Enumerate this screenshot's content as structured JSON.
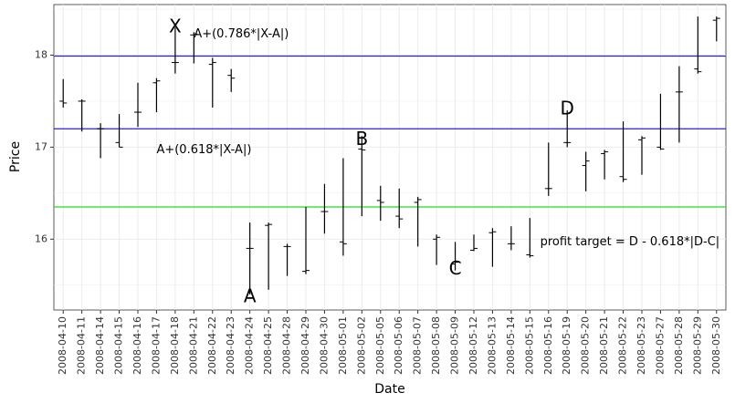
{
  "chart_data": {
    "type": "ohlc",
    "xlabel": "Date",
    "ylabel": "Price",
    "ylim": [
      15.23,
      18.55
    ],
    "yticks": [
      16,
      17,
      18
    ],
    "grid": true,
    "categories": [
      "2008-04-10",
      "2008-04-11",
      "2008-04-14",
      "2008-04-15",
      "2008-04-16",
      "2008-04-17",
      "2008-04-18",
      "2008-04-21",
      "2008-04-22",
      "2008-04-23",
      "2008-04-24",
      "2008-04-25",
      "2008-04-28",
      "2008-04-29",
      "2008-04-30",
      "2008-05-01",
      "2008-05-02",
      "2008-05-05",
      "2008-05-06",
      "2008-05-07",
      "2008-05-08",
      "2008-05-09",
      "2008-05-12",
      "2008-05-13",
      "2008-05-14",
      "2008-05-15",
      "2008-05-16",
      "2008-05-19",
      "2008-05-20",
      "2008-05-21",
      "2008-05-22",
      "2008-05-23",
      "2008-05-27",
      "2008-05-28",
      "2008-05-29",
      "2008-05-30"
    ],
    "high": [
      17.74,
      17.52,
      17.26,
      17.36,
      17.7,
      17.75,
      18.3,
      18.25,
      17.97,
      17.85,
      16.18,
      16.18,
      15.95,
      16.35,
      16.6,
      16.88,
      17.12,
      16.58,
      16.55,
      16.46,
      16.05,
      15.97,
      16.05,
      16.12,
      16.14,
      16.23,
      17.05,
      17.4,
      16.95,
      16.97,
      17.28,
      17.12,
      17.58,
      17.88,
      18.42,
      18.42
    ],
    "low": [
      17.43,
      17.17,
      16.88,
      17.0,
      17.22,
      17.38,
      17.8,
      17.91,
      17.43,
      17.6,
      15.4,
      15.45,
      15.6,
      15.62,
      16.06,
      15.82,
      16.25,
      16.2,
      16.12,
      15.92,
      15.72,
      15.66,
      15.87,
      15.7,
      15.88,
      15.8,
      16.47,
      17.0,
      16.52,
      16.65,
      16.62,
      16.7,
      16.97,
      17.05,
      17.8,
      18.15
    ],
    "open": [
      17.5,
      17.5,
      17.2,
      17.05,
      17.38,
      17.7,
      17.92,
      18.22,
      17.9,
      17.78,
      15.9,
      16.15,
      15.92,
      15.65,
      16.3,
      15.97,
      16.98,
      16.42,
      16.25,
      16.4,
      16.0,
      15.73,
      15.88,
      16.07,
      15.95,
      15.83,
      16.55,
      17.05,
      16.8,
      16.93,
      16.68,
      17.08,
      17.0,
      17.6,
      17.85,
      18.38
    ],
    "close": [
      17.48,
      17.5,
      17.2,
      17.0,
      17.38,
      17.72,
      17.92,
      18.23,
      17.92,
      17.75,
      15.9,
      16.16,
      15.92,
      15.66,
      16.3,
      15.95,
      16.97,
      16.4,
      16.22,
      16.43,
      16.02,
      15.75,
      15.9,
      16.08,
      15.95,
      15.82,
      16.55,
      17.05,
      16.85,
      16.95,
      16.65,
      17.1,
      16.98,
      17.6,
      17.82,
      18.4
    ],
    "hlines": [
      {
        "value": 17.99,
        "color": "#2424c8"
      },
      {
        "value": 17.2,
        "color": "#2424c8"
      },
      {
        "value": 16.35,
        "color": "#22dd22"
      }
    ],
    "pattern_points": [
      {
        "label": "X",
        "category": "2008-04-18",
        "y": 18.3
      },
      {
        "label": "A",
        "category": "2008-04-24",
        "y": 15.37
      },
      {
        "label": "B",
        "category": "2008-05-02",
        "y": 17.08
      },
      {
        "label": "C",
        "category": "2008-05-09",
        "y": 15.67
      },
      {
        "label": "D",
        "category": "2008-05-19",
        "y": 17.41
      }
    ],
    "annotations": [
      {
        "text": "A+(0.786*|X-A|)",
        "category": "2008-04-21",
        "y": 18.23,
        "anchor": "start",
        "offset_cat": 0.0
      },
      {
        "text": "A+(0.618*|X-A|)",
        "category": "2008-04-17",
        "y": 16.97,
        "anchor": "start",
        "offset_cat": 0.0
      },
      {
        "text": "profit target = D - 0.618*|D-C|",
        "category": "2008-05-16",
        "y": 15.97,
        "anchor": "start",
        "offset_cat": -0.45
      }
    ]
  }
}
